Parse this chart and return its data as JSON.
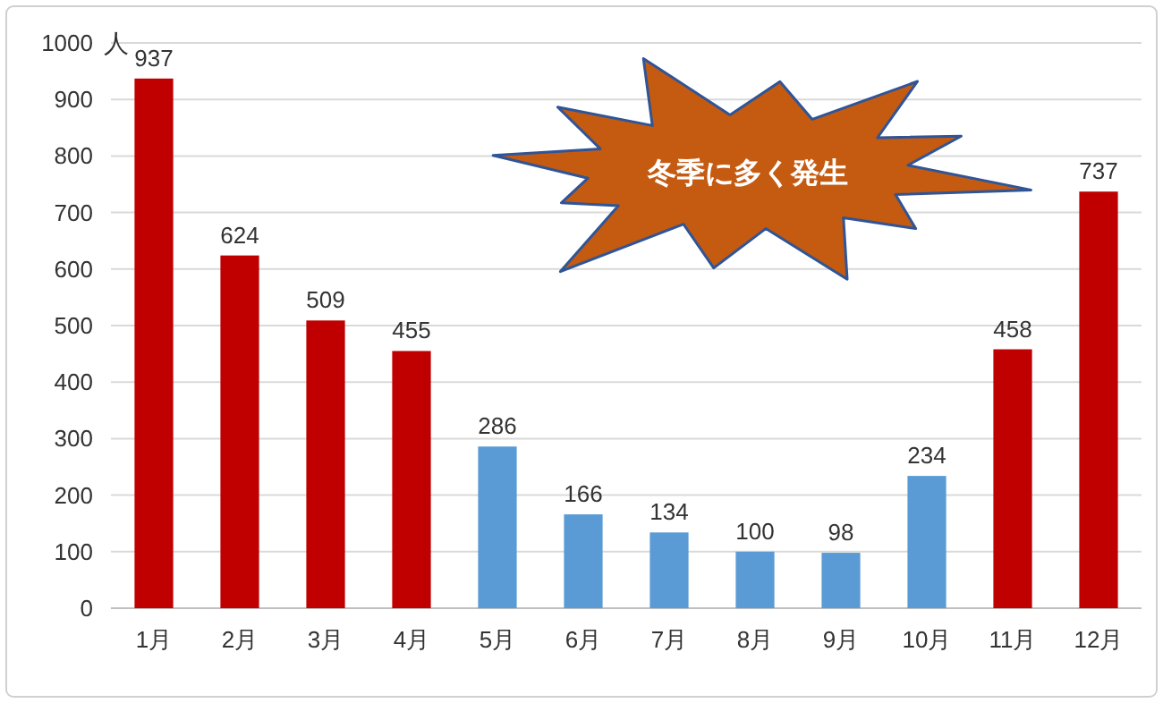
{
  "chart_data": {
    "type": "bar",
    "ylabel": "人",
    "categories": [
      "1月",
      "2月",
      "3月",
      "4月",
      "5月",
      "6月",
      "7月",
      "8月",
      "9月",
      "10月",
      "11月",
      "12月"
    ],
    "values": [
      937,
      624,
      509,
      455,
      286,
      166,
      134,
      100,
      98,
      234,
      458,
      737
    ],
    "colors": [
      "#c00000",
      "#c00000",
      "#c00000",
      "#c00000",
      "#5b9bd5",
      "#5b9bd5",
      "#5b9bd5",
      "#5b9bd5",
      "#5b9bd5",
      "#5b9bd5",
      "#c00000",
      "#c00000"
    ],
    "ylim": [
      0,
      1000
    ],
    "yticks": [
      0,
      100,
      200,
      300,
      400,
      500,
      600,
      700,
      800,
      900,
      1000
    ],
    "grid": "y",
    "data_labels": true,
    "annotations": [
      "冬季に多く発生"
    ]
  }
}
